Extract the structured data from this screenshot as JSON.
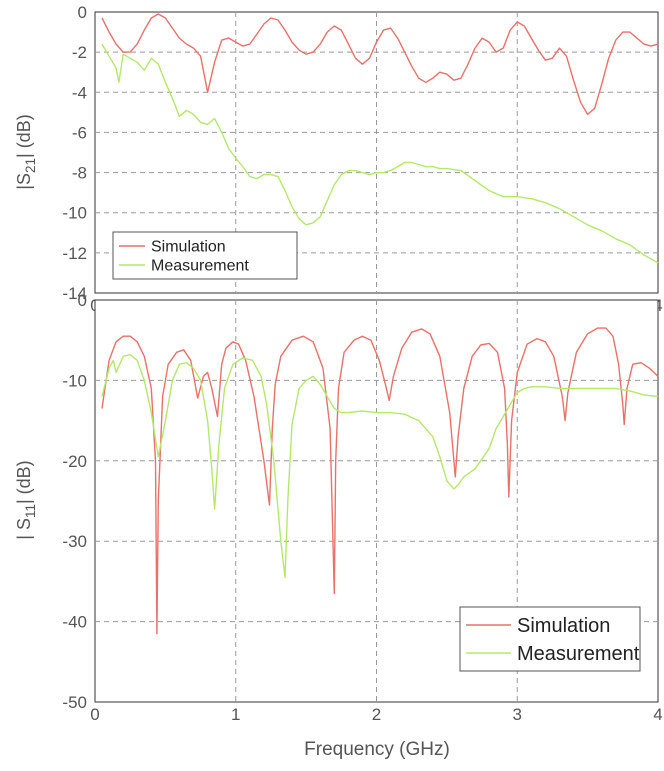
{
  "chart_data": [
    {
      "type": "line",
      "ylabel_parts": {
        "prefix": "|S",
        "sub": "21",
        "suffix": "| (dB)"
      },
      "xlim": [
        0,
        4
      ],
      "ylim": [
        -14,
        0
      ],
      "xticks": [
        "0",
        "1",
        "2",
        "3",
        "4"
      ],
      "yticks": [
        "0",
        "-2",
        "-4",
        "-6",
        "-8",
        "-10",
        "-12",
        "-14"
      ],
      "grid": true,
      "legend_position": "bottom-left",
      "legend": [
        "Simulation",
        "Measurement"
      ],
      "colors": {
        "Simulation": "#e8716a",
        "Measurement": "#b5e86a"
      },
      "series": [
        {
          "name": "Simulation",
          "x": [
            0.05,
            0.1,
            0.15,
            0.2,
            0.25,
            0.3,
            0.35,
            0.4,
            0.45,
            0.5,
            0.55,
            0.6,
            0.65,
            0.7,
            0.75,
            0.8,
            0.85,
            0.9,
            0.95,
            1.0,
            1.05,
            1.1,
            1.15,
            1.2,
            1.25,
            1.3,
            1.35,
            1.4,
            1.45,
            1.5,
            1.55,
            1.6,
            1.65,
            1.7,
            1.75,
            1.8,
            1.85,
            1.9,
            1.95,
            2.0,
            2.05,
            2.1,
            2.15,
            2.2,
            2.25,
            2.3,
            2.35,
            2.4,
            2.45,
            2.5,
            2.55,
            2.6,
            2.65,
            2.7,
            2.75,
            2.8,
            2.85,
            2.9,
            2.95,
            3.0,
            3.05,
            3.1,
            3.15,
            3.2,
            3.25,
            3.3,
            3.35,
            3.4,
            3.45,
            3.5,
            3.55,
            3.6,
            3.65,
            3.7,
            3.75,
            3.8,
            3.85,
            3.9,
            3.95,
            4.0
          ],
          "values": [
            -0.3,
            -1.0,
            -1.6,
            -2.0,
            -2.0,
            -1.6,
            -0.9,
            -0.3,
            -0.1,
            -0.3,
            -0.8,
            -1.3,
            -1.6,
            -1.8,
            -2.2,
            -4.0,
            -2.5,
            -1.4,
            -1.3,
            -1.5,
            -1.7,
            -1.6,
            -1.1,
            -0.6,
            -0.3,
            -0.4,
            -0.9,
            -1.5,
            -1.9,
            -2.1,
            -2.0,
            -1.6,
            -1.0,
            -0.7,
            -0.9,
            -1.6,
            -2.3,
            -2.6,
            -2.3,
            -1.5,
            -0.9,
            -0.8,
            -1.3,
            -2.0,
            -2.7,
            -3.3,
            -3.5,
            -3.3,
            -3.0,
            -3.1,
            -3.4,
            -3.3,
            -2.6,
            -1.8,
            -1.3,
            -1.5,
            -2.0,
            -1.8,
            -0.9,
            -0.5,
            -0.7,
            -1.3,
            -1.9,
            -2.4,
            -2.3,
            -1.8,
            -2.2,
            -3.4,
            -4.5,
            -5.1,
            -4.8,
            -3.6,
            -2.3,
            -1.4,
            -1.0,
            -1.0,
            -1.3,
            -1.6,
            -1.7,
            -1.6
          ]
        },
        {
          "name": "Measurement",
          "x": [
            0.05,
            0.1,
            0.15,
            0.17,
            0.2,
            0.25,
            0.3,
            0.35,
            0.4,
            0.45,
            0.5,
            0.55,
            0.6,
            0.65,
            0.7,
            0.75,
            0.8,
            0.85,
            0.9,
            0.95,
            1.0,
            1.05,
            1.1,
            1.15,
            1.2,
            1.25,
            1.3,
            1.35,
            1.4,
            1.45,
            1.5,
            1.55,
            1.6,
            1.65,
            1.7,
            1.75,
            1.8,
            1.85,
            1.9,
            1.95,
            2.0,
            2.05,
            2.1,
            2.15,
            2.2,
            2.25,
            2.3,
            2.35,
            2.4,
            2.45,
            2.5,
            2.6,
            2.7,
            2.8,
            2.9,
            3.0,
            3.1,
            3.2,
            3.3,
            3.4,
            3.5,
            3.6,
            3.7,
            3.8,
            3.9,
            4.0
          ],
          "values": [
            -1.6,
            -2.2,
            -2.8,
            -3.5,
            -2.1,
            -2.3,
            -2.5,
            -2.9,
            -2.3,
            -2.6,
            -3.5,
            -4.3,
            -5.2,
            -4.9,
            -5.1,
            -5.5,
            -5.6,
            -5.3,
            -6.0,
            -6.8,
            -7.3,
            -7.7,
            -8.2,
            -8.3,
            -8.1,
            -8.1,
            -8.2,
            -8.9,
            -9.7,
            -10.3,
            -10.6,
            -10.5,
            -10.2,
            -9.4,
            -8.6,
            -8.1,
            -7.9,
            -7.9,
            -8.0,
            -8.1,
            -8.0,
            -8.0,
            -7.9,
            -7.7,
            -7.5,
            -7.5,
            -7.6,
            -7.7,
            -7.7,
            -7.8,
            -7.8,
            -7.9,
            -8.4,
            -8.9,
            -9.2,
            -9.2,
            -9.3,
            -9.5,
            -9.8,
            -10.2,
            -10.6,
            -10.9,
            -11.3,
            -11.6,
            -12.1,
            -12.5
          ]
        }
      ]
    },
    {
      "type": "line",
      "ylabel_parts": {
        "prefix": "| S",
        "sub": "11",
        "suffix": "| (dB)"
      },
      "xlabel": "Frequency  (GHz)",
      "xlim": [
        0,
        4
      ],
      "ylim": [
        -50,
        0
      ],
      "xticks": [
        "0",
        "1",
        "2",
        "3",
        "4"
      ],
      "yticks": [
        "0",
        "-10",
        "-20",
        "-30",
        "-40",
        "-50"
      ],
      "grid": true,
      "legend_position": "bottom-right",
      "legend": [
        "Simulation",
        "Measurement"
      ],
      "colors": {
        "Simulation": "#e8716a",
        "Measurement": "#b5e86a"
      },
      "series": [
        {
          "name": "Simulation",
          "x": [
            0.05,
            0.1,
            0.15,
            0.2,
            0.25,
            0.3,
            0.35,
            0.4,
            0.43,
            0.44,
            0.45,
            0.48,
            0.52,
            0.58,
            0.63,
            0.68,
            0.73,
            0.77,
            0.8,
            0.83,
            0.87,
            0.9,
            0.93,
            0.98,
            1.02,
            1.07,
            1.13,
            1.2,
            1.24,
            1.26,
            1.28,
            1.32,
            1.4,
            1.48,
            1.55,
            1.62,
            1.67,
            1.7,
            1.71,
            1.73,
            1.77,
            1.84,
            1.9,
            1.96,
            2.02,
            2.07,
            2.09,
            2.12,
            2.18,
            2.25,
            2.32,
            2.38,
            2.45,
            2.52,
            2.55,
            2.56,
            2.58,
            2.62,
            2.68,
            2.74,
            2.8,
            2.86,
            2.91,
            2.93,
            2.94,
            2.96,
            3.0,
            3.07,
            3.14,
            3.2,
            3.26,
            3.32,
            3.34,
            3.36,
            3.42,
            3.5,
            3.57,
            3.63,
            3.68,
            3.72,
            3.75,
            3.76,
            3.78,
            3.82,
            3.88,
            3.94,
            4.0
          ],
          "values": [
            -13.5,
            -7.5,
            -5.2,
            -4.5,
            -4.5,
            -5.2,
            -7.0,
            -11.0,
            -20.0,
            -41.5,
            -25.0,
            -12.0,
            -8.0,
            -6.5,
            -6.2,
            -7.5,
            -12.2,
            -9.5,
            -9.0,
            -11.0,
            -14.5,
            -8.0,
            -6.0,
            -5.2,
            -5.5,
            -7.5,
            -12.0,
            -20.0,
            -25.5,
            -16.0,
            -10.5,
            -7.0,
            -5.0,
            -4.5,
            -5.2,
            -8.5,
            -16.0,
            -36.5,
            -20.0,
            -11.0,
            -6.5,
            -5.0,
            -4.5,
            -5.0,
            -7.5,
            -11.0,
            -12.5,
            -9.5,
            -6.0,
            -4.0,
            -3.6,
            -4.2,
            -7.0,
            -14.0,
            -20.0,
            -22.0,
            -17.0,
            -11.0,
            -7.0,
            -5.6,
            -5.4,
            -6.5,
            -11.0,
            -18.0,
            -24.5,
            -15.0,
            -9.0,
            -5.5,
            -4.8,
            -5.2,
            -7.0,
            -12.0,
            -15.0,
            -11.5,
            -6.5,
            -4.2,
            -3.5,
            -3.5,
            -4.5,
            -8.0,
            -13.0,
            -15.5,
            -11.0,
            -8.0,
            -7.8,
            -8.5,
            -9.5
          ]
        },
        {
          "name": "Measurement",
          "x": [
            0.05,
            0.1,
            0.13,
            0.15,
            0.2,
            0.25,
            0.3,
            0.35,
            0.4,
            0.45,
            0.5,
            0.55,
            0.6,
            0.65,
            0.7,
            0.75,
            0.8,
            0.83,
            0.85,
            0.88,
            0.92,
            0.98,
            1.05,
            1.12,
            1.18,
            1.22,
            1.27,
            1.32,
            1.35,
            1.37,
            1.4,
            1.45,
            1.5,
            1.55,
            1.6,
            1.65,
            1.7,
            1.75,
            1.8,
            1.9,
            2.0,
            2.1,
            2.2,
            2.3,
            2.4,
            2.45,
            2.5,
            2.55,
            2.58,
            2.62,
            2.7,
            2.8,
            2.85,
            2.9,
            2.95,
            3.0,
            3.05,
            3.1,
            3.2,
            3.3,
            3.4,
            3.5,
            3.6,
            3.7,
            3.8,
            3.9,
            4.0
          ],
          "values": [
            -12.0,
            -8.5,
            -7.5,
            -9.0,
            -7.0,
            -6.8,
            -7.5,
            -10.0,
            -14.0,
            -19.5,
            -15.0,
            -10.0,
            -8.0,
            -7.8,
            -8.5,
            -10.0,
            -15.0,
            -21.0,
            -26.0,
            -18.0,
            -11.0,
            -8.0,
            -7.2,
            -7.5,
            -9.5,
            -13.0,
            -20.0,
            -30.0,
            -34.5,
            -25.0,
            -15.5,
            -11.0,
            -10.0,
            -9.5,
            -10.5,
            -12.0,
            -13.5,
            -14.0,
            -14.0,
            -13.8,
            -14.0,
            -14.0,
            -14.2,
            -15.0,
            -17.0,
            -19.5,
            -22.5,
            -23.5,
            -23.0,
            -22.0,
            -21.0,
            -18.5,
            -16.0,
            -14.5,
            -13.0,
            -11.5,
            -11.0,
            -10.8,
            -10.8,
            -11.0,
            -11.0,
            -11.0,
            -11.0,
            -11.0,
            -11.3,
            -11.8,
            -12.0
          ]
        }
      ]
    }
  ]
}
